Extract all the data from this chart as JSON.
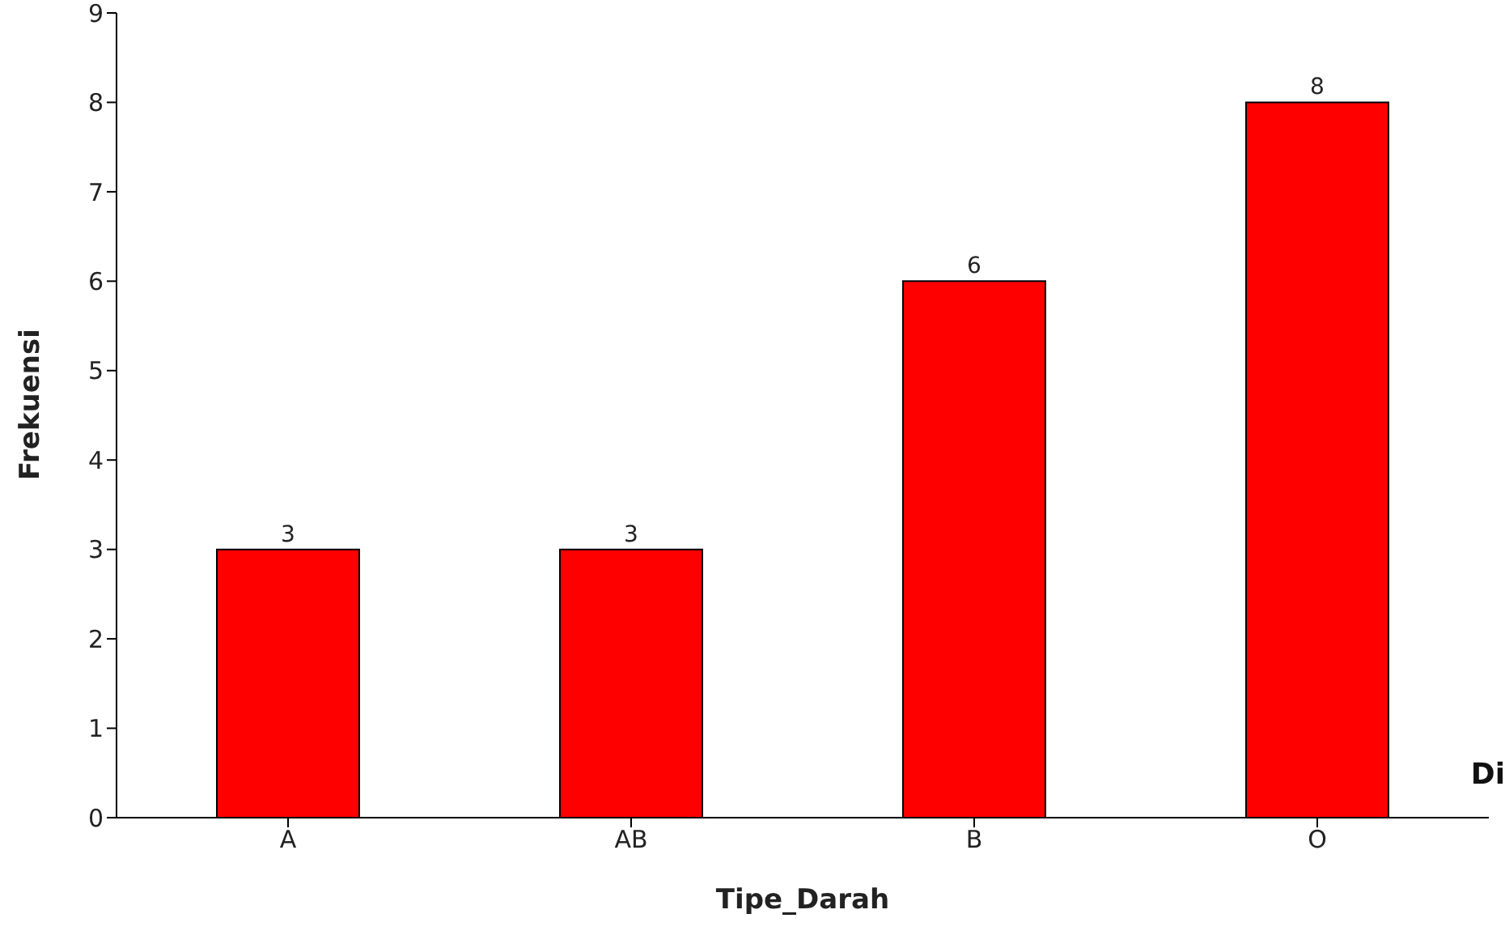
{
  "chart_data": {
    "type": "bar",
    "xlabel": "Tipe_Darah",
    "ylabel": "Frekuensi",
    "categories": [
      "A",
      "AB",
      "B",
      "O"
    ],
    "values": [
      3,
      3,
      6,
      8
    ],
    "color": "#ff0000",
    "ylim": [
      0,
      9
    ],
    "yticks": [
      0,
      1,
      2,
      3,
      4,
      5,
      6,
      7,
      8,
      9
    ],
    "data_labels": true,
    "annotations": [
      "Di"
    ]
  }
}
